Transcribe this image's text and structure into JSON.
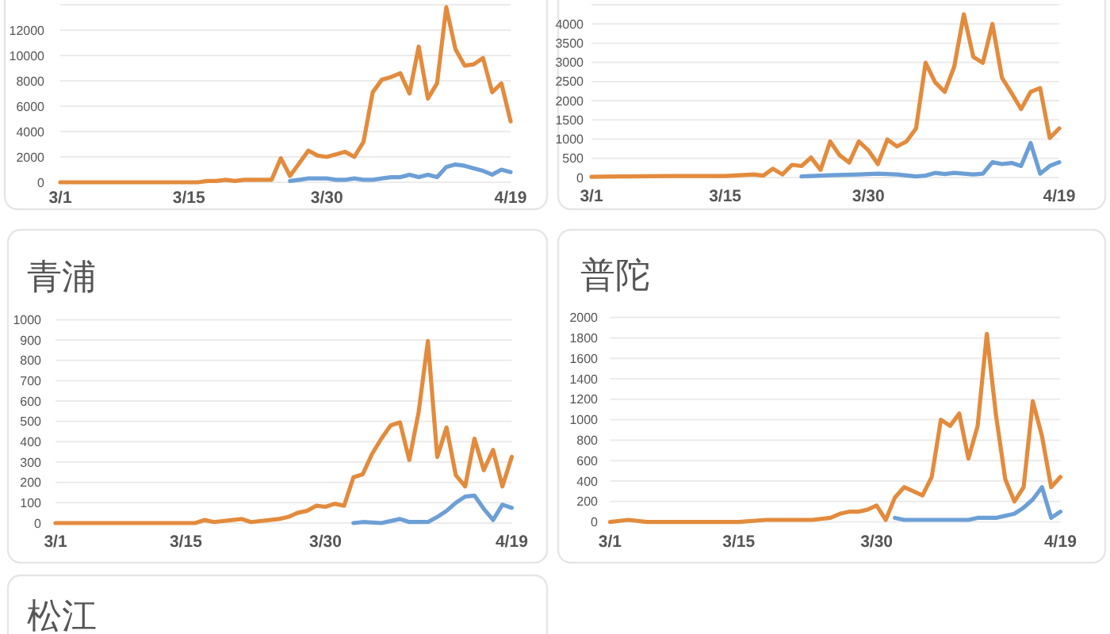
{
  "chart_data": [
    {
      "type": "line",
      "xlim": [
        "--03-01",
        "--04-19"
      ],
      "xticks": [
        {
          "value": "--03-01",
          "label": "3/1"
        },
        {
          "value": "--03-15",
          "label": "3/15"
        },
        {
          "value": "--03-30",
          "label": "3/30"
        },
        {
          "value": "--04-19",
          "label": "4/19"
        }
      ],
      "ylim": [
        0,
        14000
      ],
      "yticks": [
        0,
        2000,
        4000,
        6000,
        8000,
        10000,
        12000,
        {
          "value": 14000,
          "label": null
        }
      ],
      "grid": "y",
      "series": [
        {
          "color": "#6c9fd6",
          "x": [
            "--03-26",
            "--03-27",
            "--03-28",
            "--03-29",
            "--03-30",
            "--03-31",
            "--04-01",
            "--04-02",
            "--04-03",
            "--04-04",
            "--04-05",
            "--04-06",
            "--04-07",
            "--04-08",
            "--04-09",
            "--04-10",
            "--04-11",
            "--04-12",
            "--04-13",
            "--04-14",
            "--04-15",
            "--04-16",
            "--04-17",
            "--04-18",
            "--04-19"
          ],
          "values": [
            100,
            200,
            300,
            300,
            300,
            200,
            200,
            300,
            200,
            200,
            300,
            400,
            400,
            600,
            400,
            600,
            400,
            1200,
            1400,
            1300,
            1100,
            900,
            600,
            1000,
            800
          ]
        },
        {
          "color": "#e38b3d",
          "x": [
            "--03-01",
            "--03-16",
            "--03-17",
            "--03-18",
            "--03-19",
            "--03-20",
            "--03-21",
            "--03-22",
            "--03-23",
            "--03-24",
            "--03-25",
            "--03-26",
            "--03-27",
            "--03-28",
            "--03-29",
            "--03-30",
            "--03-31",
            "--04-01",
            "--04-02",
            "--04-03",
            "--04-04",
            "--04-05",
            "--04-06",
            "--04-07",
            "--04-08",
            "--04-09",
            "--04-10",
            "--04-11",
            "--04-12",
            "--04-13",
            "--04-14",
            "--04-15",
            "--04-16",
            "--04-17",
            "--04-18",
            "--04-19"
          ],
          "values": [
            0,
            0,
            100,
            100,
            200,
            100,
            200,
            200,
            200,
            200,
            1900,
            500,
            1500,
            2500,
            2100,
            2000,
            2200,
            2400,
            2000,
            3200,
            7100,
            8100,
            8300,
            8600,
            7000,
            10700,
            6600,
            7800,
            13800,
            10500,
            9200,
            9300,
            9800,
            7100,
            7800,
            4800
          ]
        }
      ]
    },
    {
      "type": "line",
      "xlim": [
        "--03-01",
        "--04-19"
      ],
      "xticks": [
        {
          "value": "--03-01",
          "label": "3/1"
        },
        {
          "value": "--03-15",
          "label": "3/15"
        },
        {
          "value": "--03-30",
          "label": "3/30"
        },
        {
          "value": "--04-19",
          "label": "4/19"
        }
      ],
      "ylim": [
        0,
        4500
      ],
      "yticks": [
        0,
        500,
        1000,
        1500,
        2000,
        2500,
        3000,
        3500,
        4000,
        {
          "value": 4500,
          "label": null
        }
      ],
      "grid": "y",
      "series": [
        {
          "color": "#6c9fd6",
          "x": [
            "--03-23",
            "--03-26",
            "--03-29",
            "--03-31",
            "--04-02",
            "--04-04",
            "--04-05",
            "--04-06",
            "--04-07",
            "--04-08",
            "--04-09",
            "--04-10",
            "--04-11",
            "--04-12",
            "--04-13",
            "--04-14",
            "--04-15",
            "--04-16",
            "--04-17",
            "--04-18",
            "--04-19"
          ],
          "values": [
            30,
            60,
            80,
            100,
            80,
            30,
            50,
            120,
            90,
            120,
            100,
            80,
            100,
            400,
            350,
            380,
            300,
            900,
            100,
            300,
            400
          ]
        },
        {
          "color": "#e38b3d",
          "x": [
            "--03-01",
            "--03-09",
            "--03-15",
            "--03-18",
            "--03-19",
            "--03-20",
            "--03-21",
            "--03-22",
            "--03-23",
            "--03-24",
            "--03-25",
            "--03-26",
            "--03-27",
            "--03-28",
            "--03-29",
            "--03-30",
            "--03-31",
            "--04-01",
            "--04-02",
            "--04-03",
            "--04-04",
            "--04-05",
            "--04-06",
            "--04-07",
            "--04-08",
            "--04-09",
            "--04-10",
            "--04-11",
            "--04-12",
            "--04-13",
            "--04-14",
            "--04-15",
            "--04-16",
            "--04-17",
            "--04-18",
            "--04-19"
          ],
          "values": [
            20,
            40,
            40,
            80,
            50,
            230,
            80,
            330,
            300,
            520,
            200,
            940,
            580,
            390,
            940,
            710,
            350,
            990,
            810,
            940,
            1280,
            2990,
            2480,
            2230,
            2890,
            4250,
            3140,
            2990,
            4000,
            2600,
            2200,
            1780,
            2230,
            2330,
            1030,
            1280
          ]
        }
      ]
    },
    {
      "type": "line",
      "title": "青浦",
      "xlim": [
        "--03-01",
        "--04-19"
      ],
      "xticks": [
        {
          "value": "--03-01",
          "label": "3/1"
        },
        {
          "value": "--03-15",
          "label": "3/15"
        },
        {
          "value": "--03-30",
          "label": "3/30"
        },
        {
          "value": "--04-19",
          "label": "4/19"
        }
      ],
      "ylim": [
        0,
        1000
      ],
      "yticks": [
        0,
        100,
        200,
        300,
        400,
        500,
        600,
        700,
        800,
        900,
        1000
      ],
      "grid": "y",
      "series": [
        {
          "color": "#6c9fd6",
          "x": [
            "--04-02",
            "--04-03",
            "--04-05",
            "--04-07",
            "--04-08",
            "--04-10",
            "--04-11",
            "--04-12",
            "--04-13",
            "--04-14",
            "--04-15",
            "--04-16",
            "--04-17",
            "--04-18",
            "--04-19"
          ],
          "values": [
            0,
            5,
            0,
            20,
            5,
            5,
            30,
            60,
            100,
            130,
            135,
            70,
            15,
            90,
            75
          ]
        },
        {
          "color": "#e38b3d",
          "x": [
            "--03-01",
            "--03-16",
            "--03-17",
            "--03-18",
            "--03-21",
            "--03-22",
            "--03-25",
            "--03-26",
            "--03-27",
            "--03-28",
            "--03-29",
            "--03-30",
            "--03-31",
            "--04-01",
            "--04-02",
            "--04-03",
            "--04-04",
            "--04-05",
            "--04-06",
            "--04-07",
            "--04-08",
            "--04-09",
            "--04-10",
            "--04-11",
            "--04-12",
            "--04-13",
            "--04-14",
            "--04-15",
            "--04-16",
            "--04-17",
            "--04-18",
            "--04-19"
          ],
          "values": [
            0,
            0,
            15,
            5,
            20,
            5,
            20,
            30,
            50,
            60,
            85,
            80,
            95,
            85,
            225,
            240,
            340,
            415,
            480,
            495,
            310,
            545,
            895,
            325,
            470,
            235,
            180,
            415,
            260,
            360,
            180,
            325
          ]
        }
      ]
    },
    {
      "type": "line",
      "title": "普陀",
      "xlim": [
        "--03-01",
        "--04-19"
      ],
      "xticks": [
        {
          "value": "--03-01",
          "label": "3/1"
        },
        {
          "value": "--03-15",
          "label": "3/15"
        },
        {
          "value": "--03-30",
          "label": "3/30"
        },
        {
          "value": "--04-19",
          "label": "4/19"
        }
      ],
      "ylim": [
        0,
        2000
      ],
      "yticks": [
        0,
        200,
        400,
        600,
        800,
        1000,
        1200,
        1400,
        1600,
        1800,
        2000
      ],
      "grid": "y",
      "series": [
        {
          "color": "#6c9fd6",
          "x": [
            "--04-01",
            "--04-02",
            "--04-03",
            "--04-04",
            "--04-05",
            "--04-06",
            "--04-07",
            "--04-08",
            "--04-09",
            "--04-10",
            "--04-11",
            "--04-12",
            "--04-13",
            "--04-14",
            "--04-15",
            "--04-16",
            "--04-17",
            "--04-18",
            "--04-19"
          ],
          "values": [
            40,
            20,
            20,
            20,
            20,
            20,
            20,
            20,
            20,
            40,
            40,
            40,
            60,
            80,
            140,
            220,
            340,
            40,
            100
          ]
        },
        {
          "color": "#e38b3d",
          "x": [
            "--03-01",
            "--03-03",
            "--03-05",
            "--03-15",
            "--03-18",
            "--03-19",
            "--03-21",
            "--03-23",
            "--03-25",
            "--03-26",
            "--03-27",
            "--03-28",
            "--03-29",
            "--03-30",
            "--03-31",
            "--04-01",
            "--04-02",
            "--04-03",
            "--04-04",
            "--04-05",
            "--04-06",
            "--04-07",
            "--04-08",
            "--04-09",
            "--04-10",
            "--04-11",
            "--04-12",
            "--04-13",
            "--04-14",
            "--04-15",
            "--04-16",
            "--04-17",
            "--04-18",
            "--04-19"
          ],
          "values": [
            0,
            20,
            0,
            0,
            20,
            20,
            20,
            20,
            40,
            80,
            100,
            100,
            120,
            160,
            20,
            240,
            340,
            300,
            260,
            440,
            1000,
            940,
            1060,
            620,
            940,
            1840,
            1040,
            420,
            200,
            340,
            1180,
            840,
            340,
            440
          ]
        }
      ]
    },
    {
      "type": "other",
      "title": "松江"
    }
  ]
}
